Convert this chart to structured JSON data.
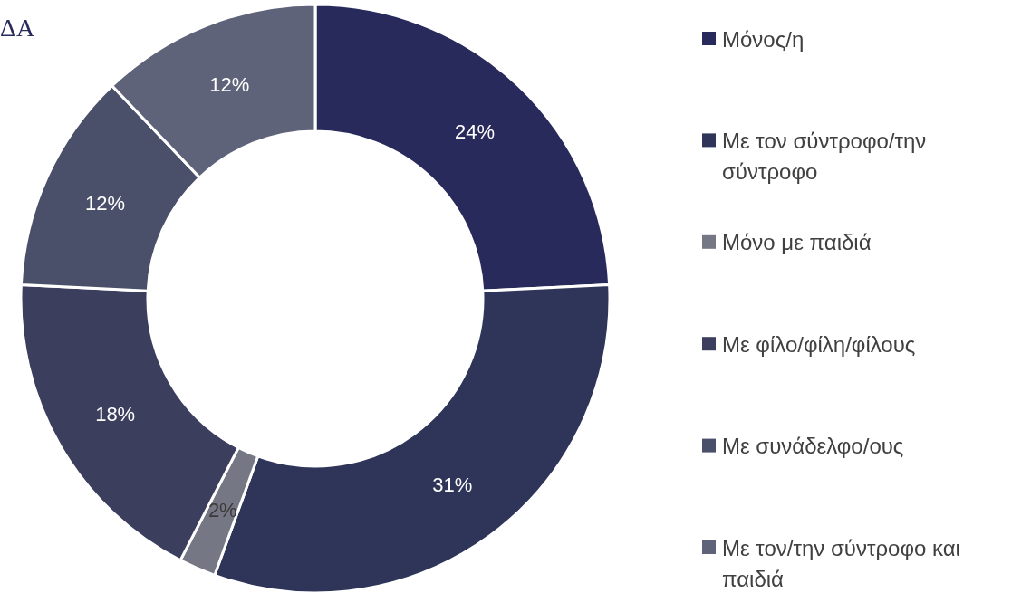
{
  "chart_data": {
    "type": "donut",
    "categories": [
      "Μόνος/η",
      "Με τον σύντροφο/την σύντροφο",
      "Μόνο με παιδιά",
      "Με φίλο/φίλη/φίλους",
      "Με συνάδελφο/ους",
      "Με τον/την σύντροφο και παιδιά"
    ],
    "values": [
      24,
      31,
      2,
      18,
      12,
      12
    ],
    "colors": [
      "#272a5a",
      "#2e3559",
      "#757785",
      "#3c3e5e",
      "#4a5069",
      "#5f6379"
    ],
    "value_labels": [
      "24%",
      "31%",
      "2%",
      "18%",
      "12%",
      "12%"
    ],
    "annotations": [
      "ΔΑ"
    ],
    "legend": "right"
  }
}
